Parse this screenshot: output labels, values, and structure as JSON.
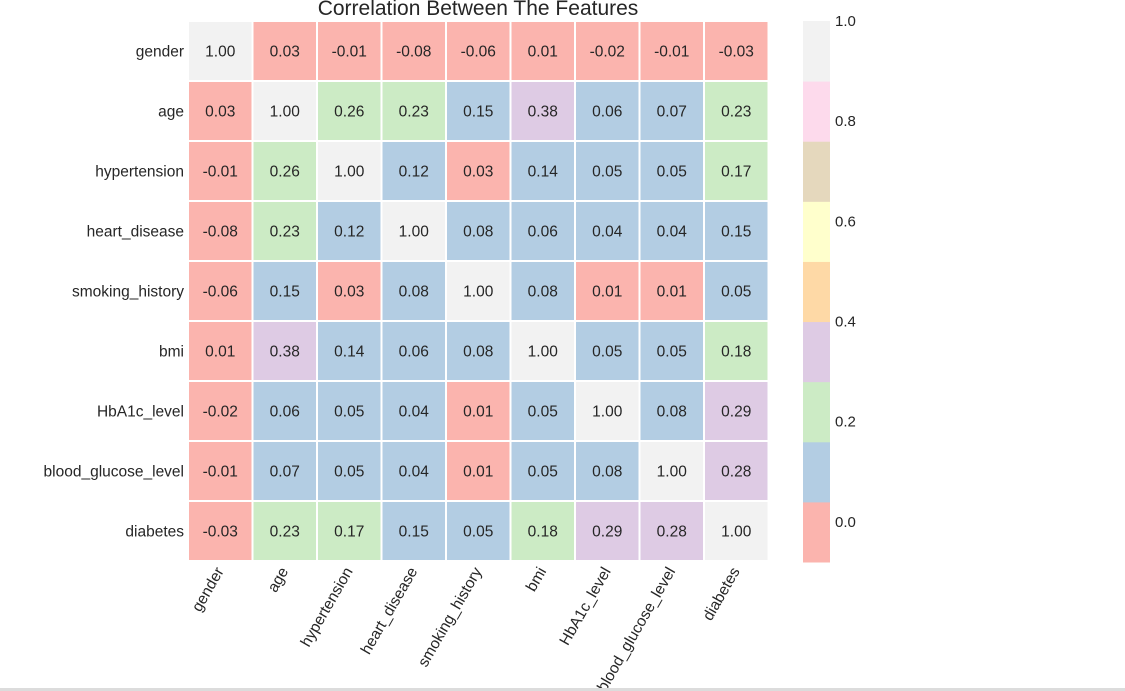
{
  "chart_data": {
    "type": "heatmap",
    "title": "Correlation Between The Features",
    "rows": [
      "gender",
      "age",
      "hypertension",
      "heart_disease",
      "smoking_history",
      "bmi",
      "HbA1c_level",
      "blood_glucose_level",
      "diabetes"
    ],
    "columns": [
      "gender",
      "age",
      "hypertension",
      "heart_disease",
      "smoking_history",
      "bmi",
      "HbA1c_level",
      "blood_glucose_level",
      "diabetes"
    ],
    "values": [
      [
        1.0,
        0.03,
        -0.01,
        -0.08,
        -0.06,
        0.01,
        -0.02,
        -0.01,
        -0.03
      ],
      [
        0.03,
        1.0,
        0.26,
        0.23,
        0.15,
        0.38,
        0.06,
        0.07,
        0.23
      ],
      [
        -0.01,
        0.26,
        1.0,
        0.12,
        0.03,
        0.14,
        0.05,
        0.05,
        0.17
      ],
      [
        -0.08,
        0.23,
        0.12,
        1.0,
        0.08,
        0.06,
        0.04,
        0.04,
        0.15
      ],
      [
        -0.06,
        0.15,
        0.03,
        0.08,
        1.0,
        0.08,
        0.01,
        0.01,
        0.05
      ],
      [
        0.01,
        0.38,
        0.14,
        0.06,
        0.08,
        1.0,
        0.05,
        0.05,
        0.18
      ],
      [
        -0.02,
        0.06,
        0.05,
        0.04,
        0.01,
        0.05,
        1.0,
        0.08,
        0.29
      ],
      [
        -0.01,
        0.07,
        0.05,
        0.04,
        0.01,
        0.05,
        0.08,
        1.0,
        0.28
      ],
      [
        -0.03,
        0.23,
        0.17,
        0.15,
        0.05,
        0.18,
        0.29,
        0.28,
        1.0
      ]
    ],
    "value_format": "2-decimals",
    "colormap": "Pastel1",
    "color_range": [
      -0.08,
      1.0
    ],
    "colorbar": {
      "ticks": [
        "0.0",
        "0.2",
        "0.4",
        "0.6",
        "0.8",
        "1.0"
      ],
      "tick_values": [
        0.0,
        0.2,
        0.4,
        0.6,
        0.8,
        1.0
      ],
      "colors": [
        "#fbb4ae",
        "#b3cde3",
        "#ccebc5",
        "#decbe4",
        "#fed9a6",
        "#ffffcc",
        "#e5d8bd",
        "#fddaec",
        "#f2f2f2"
      ]
    },
    "grid": false,
    "x_tick_rotation": "60 degrees",
    "xlabel": "",
    "ylabel": ""
  }
}
